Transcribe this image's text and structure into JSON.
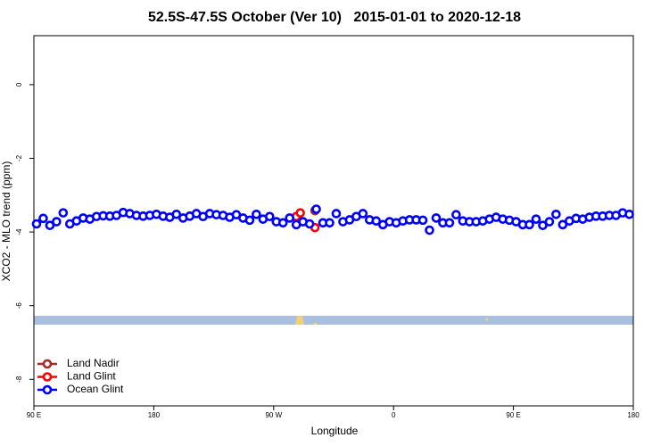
{
  "chart_data": {
    "type": "scatter",
    "title": "52.5S-47.5S October (Ver 10)   2015-01-01 to 2020-12-18",
    "xlabel": "Longitude",
    "ylabel": "XCO2 - MLO trend (ppm)",
    "xlim": [
      90,
      540
    ],
    "xticks": [
      {
        "value": 90,
        "label": "90 E"
      },
      180,
      {
        "value": 270,
        "label": "90 W"
      },
      {
        "value": 360,
        "label": "0"
      },
      {
        "value": 450,
        "label": "90 E"
      },
      {
        "value": 540,
        "label": "180"
      }
    ],
    "ylim": [
      -8.72,
      1.33
    ],
    "yticks": [
      -8,
      -6,
      -4,
      -2,
      0
    ],
    "legend": "bottom-left",
    "series": [
      {
        "name": "Land Nadir",
        "color": "#a52a2a",
        "x": [
          301
        ],
        "values": [
          -3.42
        ]
      },
      {
        "name": "Land Glint",
        "color": "#ff0000",
        "x": [
          287,
          290,
          301
        ],
        "values": [
          -3.58,
          -3.48,
          -3.88
        ]
      },
      {
        "name": "Ocean Glint",
        "color": "#0000ff",
        "x": [
          92,
          97,
          102,
          107,
          112,
          117,
          122,
          127,
          132,
          137,
          142,
          147,
          152,
          157,
          162,
          167,
          172,
          177,
          182,
          187,
          192,
          197,
          202,
          207,
          212,
          217,
          222,
          227,
          232,
          237,
          242,
          247,
          252,
          257,
          262,
          267,
          272,
          277,
          282,
          287,
          292,
          297,
          302,
          307,
          312,
          317,
          322,
          327,
          332,
          337,
          342,
          347,
          352,
          357,
          362,
          367,
          372,
          377,
          382,
          387,
          392,
          397,
          402,
          407,
          412,
          417,
          422,
          427,
          432,
          437,
          442,
          447,
          452,
          457,
          462,
          467,
          472,
          477,
          482,
          487,
          492,
          497,
          502,
          507,
          512,
          517,
          522,
          527,
          532,
          537
        ],
        "values": [
          -3.78,
          -3.63,
          -3.82,
          -3.72,
          -3.48,
          -3.78,
          -3.7,
          -3.62,
          -3.65,
          -3.58,
          -3.56,
          -3.57,
          -3.55,
          -3.47,
          -3.5,
          -3.55,
          -3.57,
          -3.55,
          -3.52,
          -3.57,
          -3.6,
          -3.52,
          -3.62,
          -3.57,
          -3.5,
          -3.58,
          -3.5,
          -3.53,
          -3.55,
          -3.6,
          -3.53,
          -3.62,
          -3.68,
          -3.52,
          -3.65,
          -3.58,
          -3.72,
          -3.75,
          -3.62,
          -3.8,
          -3.72,
          -3.78,
          -3.38,
          -3.75,
          -3.75,
          -3.5,
          -3.72,
          -3.67,
          -3.58,
          -3.5,
          -3.67,
          -3.7,
          -3.8,
          -3.72,
          -3.75,
          -3.7,
          -3.67,
          -3.67,
          -3.68,
          -3.95,
          -3.62,
          -3.75,
          -3.75,
          -3.53,
          -3.7,
          -3.72,
          -3.72,
          -3.7,
          -3.65,
          -3.6,
          -3.65,
          -3.68,
          -3.72,
          -3.8,
          -3.8,
          -3.65,
          -3.82,
          -3.72,
          -3.52,
          -3.8,
          -3.7,
          -3.63,
          -3.65,
          -3.6,
          -3.57,
          -3.57,
          -3.55,
          -3.55,
          -3.48,
          -3.52
        ]
      }
    ]
  }
}
